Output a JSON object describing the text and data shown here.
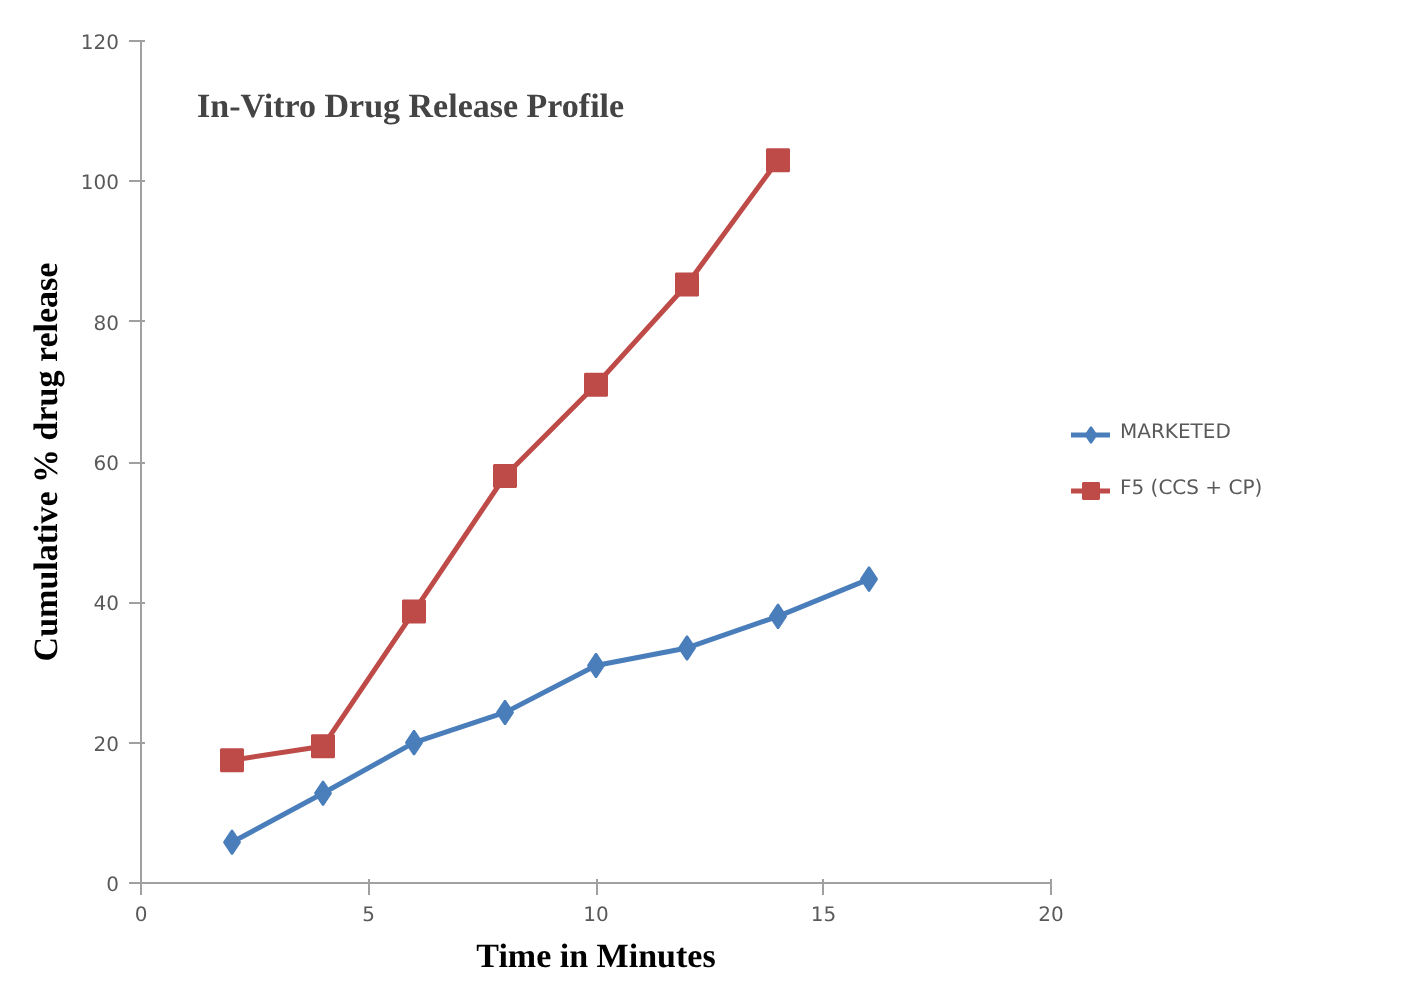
{
  "chart_data": {
    "type": "line",
    "title": "In-Vitro Drug Release Profile",
    "xlabel": "Time in Minutes",
    "ylabel": "Cumulative % drug release",
    "xlim": [
      0,
      20
    ],
    "xticks": [
      0,
      5,
      10,
      15,
      20
    ],
    "ylim": [
      0,
      120
    ],
    "yticks": [
      0,
      20,
      40,
      60,
      80,
      100,
      120
    ],
    "grid": false,
    "legend": "right",
    "series": [
      {
        "name": "MARKETED",
        "color": "#4a7ebb",
        "marker": "diamond",
        "x": [
          2,
          4,
          6,
          8,
          10,
          12,
          14,
          16
        ],
        "values": [
          5.8,
          12.8,
          20,
          24.3,
          31,
          33.5,
          38,
          43.3
        ]
      },
      {
        "name": "F5 (CCS + CP)",
        "color": "#be4b48",
        "marker": "square",
        "x": [
          2,
          4,
          6,
          8,
          10,
          12,
          14
        ],
        "values": [
          17.5,
          19.5,
          38.7,
          58,
          71,
          85.3,
          103
        ]
      }
    ]
  }
}
